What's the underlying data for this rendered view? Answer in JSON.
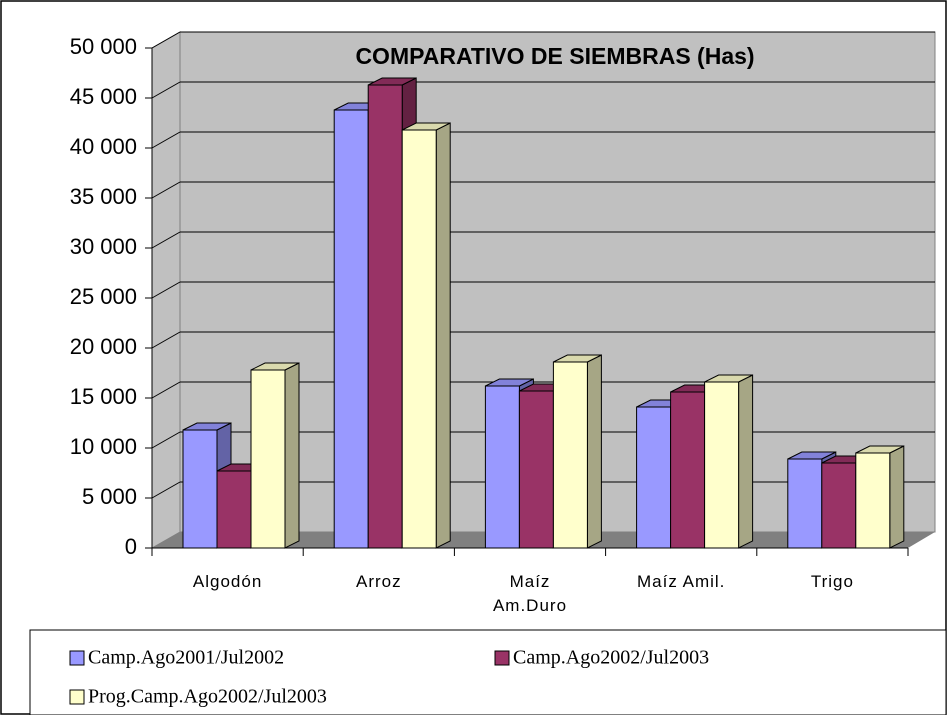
{
  "chart_data": {
    "type": "bar3d",
    "title": "COMPARATIVO DE SIEMBRAS (Has)",
    "categories": [
      "Algodón",
      "Arroz",
      "Maíz Am.Duro",
      "Maíz Amil.",
      "Trigo"
    ],
    "series": [
      {
        "name": "Camp.Ago2001/Jul2002",
        "color": "#9999ff",
        "values": [
          11800,
          43800,
          16200,
          14100,
          8900
        ]
      },
      {
        "name": "Camp.Ago2002/Jul2003",
        "color": "#993366",
        "values": [
          7700,
          46300,
          15700,
          15600,
          8500
        ]
      },
      {
        "name": "Prog.Camp.Ago2002/Jul2003",
        "color": "#ffffcc",
        "values": [
          17800,
          41800,
          18600,
          16600,
          9500
        ]
      }
    ],
    "ylim": [
      0,
      50000
    ],
    "yticks": [
      0,
      {
        "value": 5000,
        "label": "5 000"
      },
      {
        "value": 10000,
        "label": "10 000"
      },
      {
        "value": 15000,
        "label": "15 000"
      },
      {
        "value": 20000,
        "label": "20 000"
      },
      {
        "value": 25000,
        "label": "25 000"
      },
      {
        "value": 30000,
        "label": "30 000"
      },
      {
        "value": 35000,
        "label": "35 000"
      },
      {
        "value": 40000,
        "label": "40 000"
      },
      {
        "value": 45000,
        "label": "45 000"
      },
      {
        "value": 50000,
        "label": "50 000"
      }
    ],
    "grid": true,
    "legend": "bottom"
  }
}
